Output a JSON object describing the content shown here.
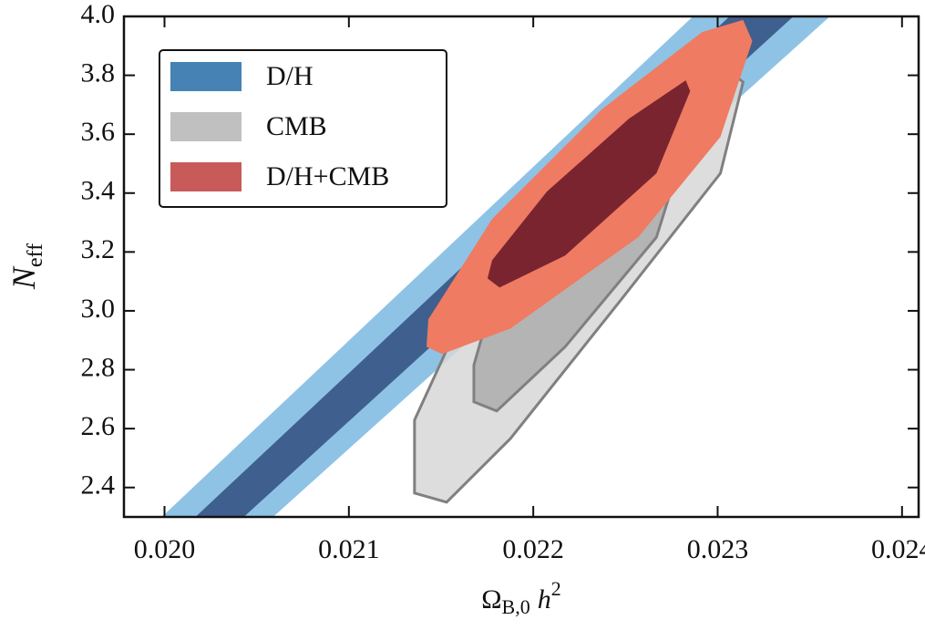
{
  "chart_data": {
    "type": "contour",
    "xlabel": {
      "main": "Ω",
      "sub": "B,0",
      "after": "h",
      "sup": "2"
    },
    "ylabel": {
      "main": "N",
      "sub": "eff"
    },
    "xlim": [
      0.01978,
      0.02409
    ],
    "ylim": [
      2.3,
      4.0
    ],
    "xticks": [
      {
        "value": 0.02,
        "label": "0.020"
      },
      0.021,
      0.022,
      0.023,
      0.024
    ],
    "yticks": [
      2.4,
      2.6,
      2.8,
      {
        "value": 3.0,
        "label": "3.0"
      },
      3.2,
      3.4,
      3.6,
      3.8,
      {
        "value": 4.0,
        "label": "4.0"
      }
    ],
    "legend": "upper left",
    "series": [
      {
        "name": "D/H",
        "color": "#4682b4",
        "regions": [
          {
            "color": "#8ec3e6",
            "x": [
              0.019985,
              0.022866,
              0.023609,
              0.020589
            ],
            "y": [
              2.3,
              4.0,
              4.0,
              2.3
            ]
          },
          {
            "color": "#3f5f8e",
            "x": [
              0.020168,
              0.023064,
              0.023411,
              0.02043
            ],
            "y": [
              2.3,
              4.0,
              4.0,
              2.3
            ]
          }
        ]
      },
      {
        "name": "CMB",
        "color": "#c0c0c0",
        "edgecolor": "#808080",
        "regions": [
          {
            "color": "rgba(215,215,215,0.85)",
            "x": [
              0.021356,
              0.02153,
              0.021876,
              0.02247,
              0.023015,
              0.023138,
              0.023015,
              0.022718,
              0.022173,
              0.021629,
              0.021356
            ],
            "y": [
              2.381,
              2.35,
              2.566,
              3.033,
              3.467,
              3.777,
              3.839,
              3.715,
              3.374,
              3.002,
              2.629
            ]
          },
          {
            "color": "rgba(170,170,170,0.8)",
            "x": [
              0.021678,
              0.021802,
              0.022173,
              0.022668,
              0.022792,
              0.022718,
              0.022569,
              0.022173,
              0.021777,
              0.021678
            ],
            "y": [
              2.691,
              2.66,
              2.878,
              3.25,
              3.498,
              3.597,
              3.56,
              3.312,
              3.033,
              2.816
            ]
          }
        ]
      },
      {
        "name": "D/H+CMB",
        "color": "#c85a5a",
        "regions": [
          {
            "color": "#ef7b62",
            "x": [
              0.021421,
              0.021505,
              0.021876,
              0.022569,
              0.023015,
              0.023188,
              0.023138,
              0.022916,
              0.022371,
              0.021777,
              0.021431
            ],
            "y": [
              2.878,
              2.853,
              2.94,
              3.25,
              3.591,
              3.916,
              3.988,
              3.947,
              3.684,
              3.312,
              2.971
            ]
          },
          {
            "color": "#7a2430",
            "x": [
              0.021752,
              0.021817,
              0.022173,
              0.022668,
              0.022851,
              0.022827,
              0.02252,
              0.022074,
              0.021777
            ],
            "y": [
              3.11,
              3.079,
              3.188,
              3.467,
              3.746,
              3.783,
              3.653,
              3.405,
              3.172
            ]
          }
        ]
      }
    ]
  }
}
